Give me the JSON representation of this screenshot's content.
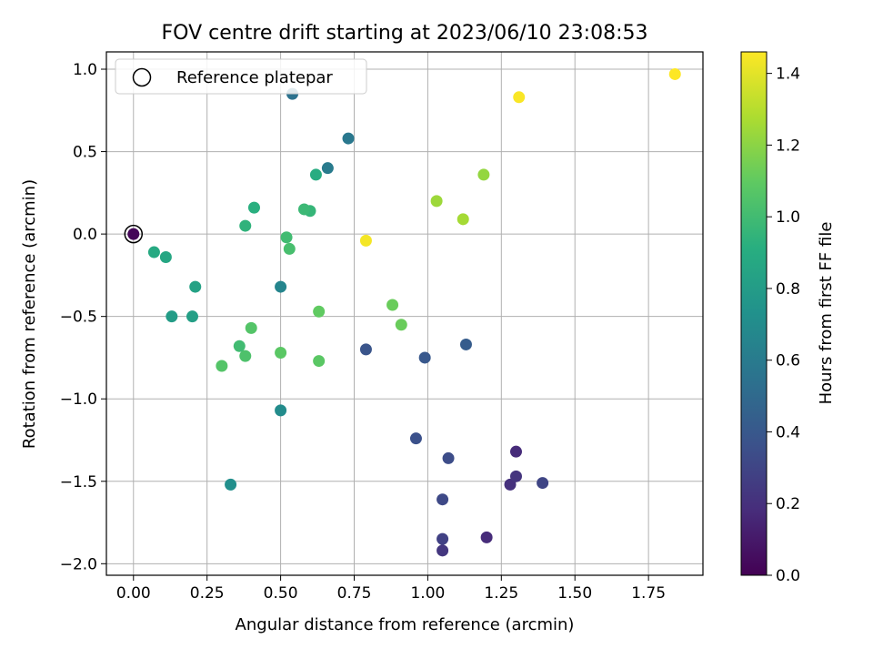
{
  "chart_data": {
    "type": "scatter",
    "title": "FOV centre drift starting at 2023/06/10 23:08:53",
    "xlabel": "Angular distance from reference (arcmin)",
    "ylabel": "Rotation from reference (arcmin)",
    "xlim": [
      -0.092,
      1.935
    ],
    "ylim": [
      -2.07,
      1.105
    ],
    "xticks": [
      "0.00",
      "0.25",
      "0.50",
      "0.75",
      "1.00",
      "1.25",
      "1.50",
      "1.75"
    ],
    "yticks": [
      "−2.0",
      "−1.5",
      "−1.0",
      "−0.5",
      "0.0",
      "0.5",
      "1.0"
    ],
    "grid": true,
    "legend": {
      "placement": "upper-left",
      "entries": [
        "Reference platepar"
      ]
    },
    "reference_point": {
      "x": 0.0,
      "y": 0.0
    },
    "colorbar": {
      "label": "Hours from first FF file",
      "colormap": "viridis",
      "range": [
        0.0,
        1.46
      ],
      "ticks": [
        "0.0",
        "0.2",
        "0.4",
        "0.6",
        "0.8",
        "1.0",
        "1.2",
        "1.4"
      ]
    },
    "points": [
      {
        "x": 0.0,
        "y": 0.0,
        "h": 0.02
      },
      {
        "x": 1.2,
        "y": -1.84,
        "h": 0.18
      },
      {
        "x": 1.05,
        "y": -1.92,
        "h": 0.23
      },
      {
        "x": 1.05,
        "y": -1.85,
        "h": 0.28
      },
      {
        "x": 1.28,
        "y": -1.52,
        "h": 0.2
      },
      {
        "x": 1.3,
        "y": -1.47,
        "h": 0.22
      },
      {
        "x": 1.3,
        "y": -1.32,
        "h": 0.18
      },
      {
        "x": 1.39,
        "y": -1.51,
        "h": 0.3
      },
      {
        "x": 1.05,
        "y": -1.61,
        "h": 0.32
      },
      {
        "x": 1.07,
        "y": -1.36,
        "h": 0.34
      },
      {
        "x": 0.96,
        "y": -1.24,
        "h": 0.36
      },
      {
        "x": 0.79,
        "y": -0.7,
        "h": 0.38
      },
      {
        "x": 0.99,
        "y": -0.75,
        "h": 0.4
      },
      {
        "x": 1.13,
        "y": -0.67,
        "h": 0.42
      },
      {
        "x": 0.54,
        "y": 0.85,
        "h": 0.55
      },
      {
        "x": 0.73,
        "y": 0.58,
        "h": 0.58
      },
      {
        "x": 0.66,
        "y": 0.4,
        "h": 0.6
      },
      {
        "x": 0.5,
        "y": -0.32,
        "h": 0.66
      },
      {
        "x": 0.5,
        "y": -1.07,
        "h": 0.7
      },
      {
        "x": 0.33,
        "y": -1.52,
        "h": 0.72
      },
      {
        "x": 0.21,
        "y": -0.32,
        "h": 0.84
      },
      {
        "x": 0.2,
        "y": -0.5,
        "h": 0.82
      },
      {
        "x": 0.13,
        "y": -0.5,
        "h": 0.8
      },
      {
        "x": 0.11,
        "y": -0.14,
        "h": 0.86
      },
      {
        "x": 0.07,
        "y": -0.11,
        "h": 0.88
      },
      {
        "x": 0.62,
        "y": 0.36,
        "h": 0.9
      },
      {
        "x": 0.41,
        "y": 0.16,
        "h": 0.92
      },
      {
        "x": 0.38,
        "y": 0.05,
        "h": 0.94
      },
      {
        "x": 0.6,
        "y": 0.14,
        "h": 0.96
      },
      {
        "x": 0.58,
        "y": 0.15,
        "h": 0.98
      },
      {
        "x": 0.52,
        "y": -0.02,
        "h": 1.0
      },
      {
        "x": 0.53,
        "y": -0.09,
        "h": 1.02
      },
      {
        "x": 0.36,
        "y": -0.68,
        "h": 1.0
      },
      {
        "x": 0.38,
        "y": -0.74,
        "h": 1.04
      },
      {
        "x": 0.4,
        "y": -0.57,
        "h": 1.06
      },
      {
        "x": 0.3,
        "y": -0.8,
        "h": 1.06
      },
      {
        "x": 0.5,
        "y": -0.72,
        "h": 1.08
      },
      {
        "x": 0.63,
        "y": -0.77,
        "h": 1.08
      },
      {
        "x": 0.63,
        "y": -0.47,
        "h": 1.1
      },
      {
        "x": 0.88,
        "y": -0.43,
        "h": 1.12
      },
      {
        "x": 0.91,
        "y": -0.55,
        "h": 1.12
      },
      {
        "x": 1.03,
        "y": 0.2,
        "h": 1.24
      },
      {
        "x": 1.12,
        "y": 0.09,
        "h": 1.26
      },
      {
        "x": 1.19,
        "y": 0.36,
        "h": 1.22
      },
      {
        "x": 0.79,
        "y": -0.04,
        "h": 1.44
      },
      {
        "x": 1.31,
        "y": 0.83,
        "h": 1.45
      },
      {
        "x": 1.84,
        "y": 0.97,
        "h": 1.46
      }
    ]
  }
}
